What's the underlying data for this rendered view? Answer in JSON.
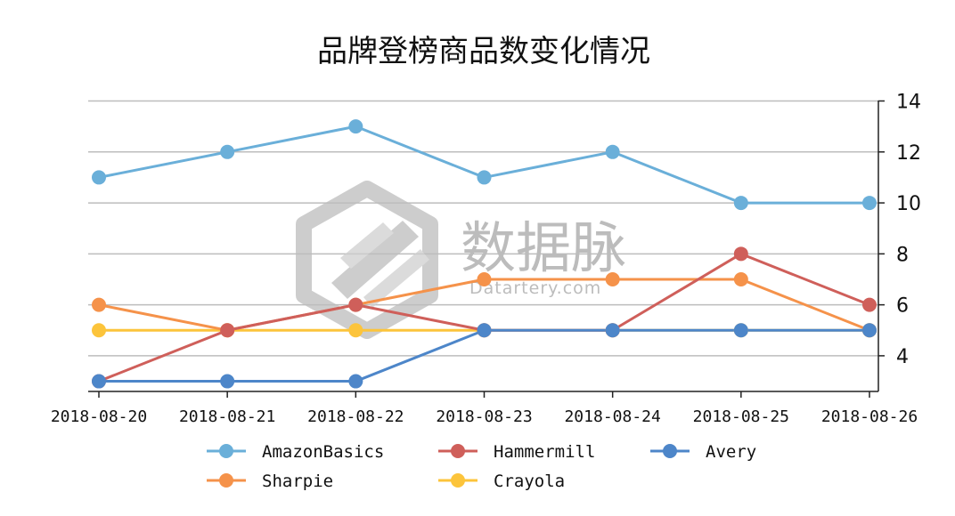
{
  "watermark": {
    "name": "数据脉",
    "domain": "Datartery.com"
  },
  "chart_data": {
    "type": "line",
    "title": "品牌登榜商品数变化情况",
    "x": [
      "2018-08-20",
      "2018-08-21",
      "2018-08-22",
      "2018-08-23",
      "2018-08-24",
      "2018-08-25",
      "2018-08-26"
    ],
    "ylim": [
      2.6,
      14.6
    ],
    "yticks": [
      4,
      6,
      8,
      10,
      12,
      14
    ],
    "y_axis_side": "right",
    "grid": true,
    "legend_position": "bottom",
    "series": [
      {
        "name": "AmazonBasics",
        "color": "#6aafd9",
        "values": [
          11,
          12,
          13,
          11,
          12,
          10,
          10
        ]
      },
      {
        "name": "Hammermill",
        "color": "#cf5f5a",
        "values": [
          3,
          5,
          6,
          5,
          5,
          8,
          6
        ]
      },
      {
        "name": "Avery",
        "color": "#4d86c9",
        "values": [
          3,
          3,
          3,
          5,
          5,
          5,
          5
        ]
      },
      {
        "name": "Sharpie",
        "color": "#f5924a",
        "values": [
          6,
          5,
          6,
          7,
          7,
          7,
          5
        ]
      },
      {
        "name": "Crayola",
        "color": "#fcc43b",
        "values": [
          5,
          5,
          5,
          5,
          5,
          5,
          5
        ]
      }
    ]
  }
}
